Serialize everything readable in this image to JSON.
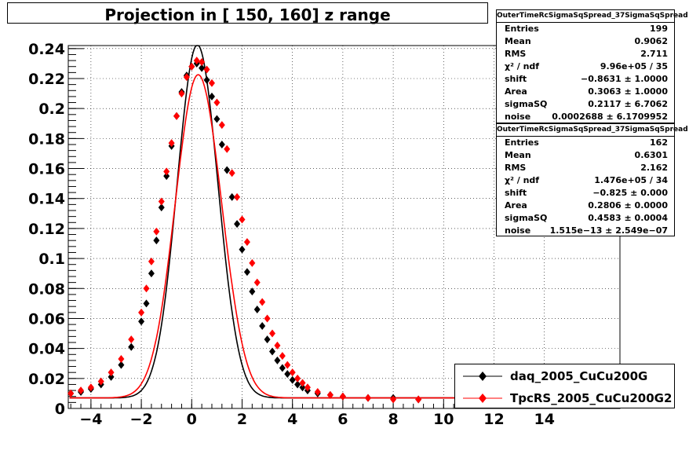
{
  "chart_data": {
    "type": "line",
    "title": "Projection in [ 150, 160] z range",
    "xlim": [
      -4.9,
      17
    ],
    "ylim": [
      0,
      0.242
    ],
    "grid": true,
    "legend_position": "bottom-right",
    "x_ticks": [
      -4,
      -2,
      0,
      2,
      4,
      6,
      8,
      10,
      12,
      14
    ],
    "x_tick_labels": [
      "−4",
      "−2",
      "0",
      "2",
      "4",
      "6",
      "8",
      "10",
      "12",
      "14"
    ],
    "y_ticks": [
      0,
      0.02,
      0.04,
      0.06,
      0.08,
      0.1,
      0.12,
      0.14,
      0.16,
      0.18,
      0.2,
      0.22,
      0.24
    ],
    "y_tick_labels": [
      "0",
      "0.02",
      "0.04",
      "0.06",
      "0.08",
      "0.1",
      "0.12",
      "0.14",
      "0.16",
      "0.18",
      "0.2",
      "0.22",
      "0.24"
    ],
    "series": [
      {
        "name": "daq_2005_CuCu200G",
        "color": "#000000",
        "marker": "diamond",
        "fit": {
          "mu": 0.22,
          "sigma": 0.8,
          "amp": 0.235,
          "floor": 0.007
        },
        "x": [
          -4.8,
          -4.4,
          -4.0,
          -3.6,
          -3.2,
          -2.8,
          -2.4,
          -2.0,
          -1.8,
          -1.6,
          -1.4,
          -1.2,
          -1.0,
          -0.8,
          -0.6,
          -0.4,
          -0.2,
          0.0,
          0.2,
          0.4,
          0.6,
          0.8,
          1.0,
          1.2,
          1.4,
          1.6,
          1.8,
          2.0,
          2.2,
          2.4,
          2.6,
          2.8,
          3.0,
          3.2,
          3.4,
          3.6,
          3.8,
          4.0,
          4.2,
          4.4,
          4.6,
          5.0,
          5.5,
          6.0,
          7.0,
          8.0,
          9.0
        ],
        "y": [
          0.01,
          0.011,
          0.013,
          0.016,
          0.021,
          0.029,
          0.041,
          0.058,
          0.07,
          0.09,
          0.112,
          0.134,
          0.155,
          0.175,
          0.195,
          0.211,
          0.222,
          0.228,
          0.23,
          0.227,
          0.219,
          0.208,
          0.193,
          0.176,
          0.159,
          0.141,
          0.123,
          0.106,
          0.091,
          0.078,
          0.066,
          0.055,
          0.046,
          0.038,
          0.032,
          0.027,
          0.023,
          0.019,
          0.016,
          0.014,
          0.012,
          0.01,
          0.009,
          0.008,
          0.007,
          0.007,
          0.006
        ]
      },
      {
        "name": "TpcRS_2005_CuCu200G2",
        "color": "#ff0000",
        "marker": "diamond",
        "fit": {
          "mu": 0.25,
          "sigma": 0.9,
          "amp": 0.215,
          "floor": 0.007
        },
        "x": [
          -4.8,
          -4.4,
          -4.0,
          -3.6,
          -3.2,
          -2.8,
          -2.4,
          -2.0,
          -1.8,
          -1.6,
          -1.4,
          -1.2,
          -1.0,
          -0.8,
          -0.6,
          -0.4,
          -0.2,
          0.0,
          0.2,
          0.4,
          0.6,
          0.8,
          1.0,
          1.2,
          1.4,
          1.6,
          1.8,
          2.0,
          2.2,
          2.4,
          2.6,
          2.8,
          3.0,
          3.2,
          3.4,
          3.6,
          3.8,
          4.0,
          4.2,
          4.4,
          4.6,
          5.0,
          5.5,
          6.0,
          7.0,
          8.0,
          9.0
        ],
        "y": [
          0.01,
          0.012,
          0.014,
          0.018,
          0.024,
          0.033,
          0.046,
          0.064,
          0.08,
          0.098,
          0.118,
          0.138,
          0.158,
          0.177,
          0.195,
          0.21,
          0.221,
          0.228,
          0.232,
          0.231,
          0.226,
          0.217,
          0.204,
          0.189,
          0.173,
          0.157,
          0.141,
          0.126,
          0.111,
          0.097,
          0.084,
          0.071,
          0.06,
          0.05,
          0.042,
          0.035,
          0.029,
          0.024,
          0.02,
          0.017,
          0.014,
          0.011,
          0.009,
          0.008,
          0.007,
          0.006,
          0.006
        ]
      }
    ]
  },
  "stats_boxes": [
    {
      "name": "OuterTimeRcSigmaSqSpread_37SigmaSqSpread",
      "rows": [
        {
          "label": "Entries",
          "value": "199"
        },
        {
          "label": "Mean",
          "value": "0.9062"
        },
        {
          "label": "RMS",
          "value": "2.711"
        },
        {
          "label": "χ² / ndf",
          "value": "9.96e+05 / 35"
        },
        {
          "label": "shift",
          "value": "−0.8631 ± 1.0000"
        },
        {
          "label": "Area",
          "value": "0.3063 ± 1.0000"
        },
        {
          "label": "sigmaSQ",
          "value": "0.2117 ± 6.7062"
        },
        {
          "label": "noise",
          "value": "0.0002688 ± 6.1709952"
        }
      ]
    },
    {
      "name": "OuterTimeRcSigmaSqSpread_37SigmaSqSpread",
      "rows": [
        {
          "label": "Entries",
          "value": "162"
        },
        {
          "label": "Mean",
          "value": "0.6301"
        },
        {
          "label": "RMS",
          "value": "2.162"
        },
        {
          "label": "χ² / ndf",
          "value": "1.476e+05 / 34"
        },
        {
          "label": "shift",
          "value": "−0.825 ± 0.000"
        },
        {
          "label": "Area",
          "value": "0.2806 ± 0.0000"
        },
        {
          "label": "sigmaSQ",
          "value": "0.4583 ± 0.0004"
        },
        {
          "label": "noise",
          "value": "1.515e−13 ± 2.549e−07"
        }
      ]
    }
  ]
}
